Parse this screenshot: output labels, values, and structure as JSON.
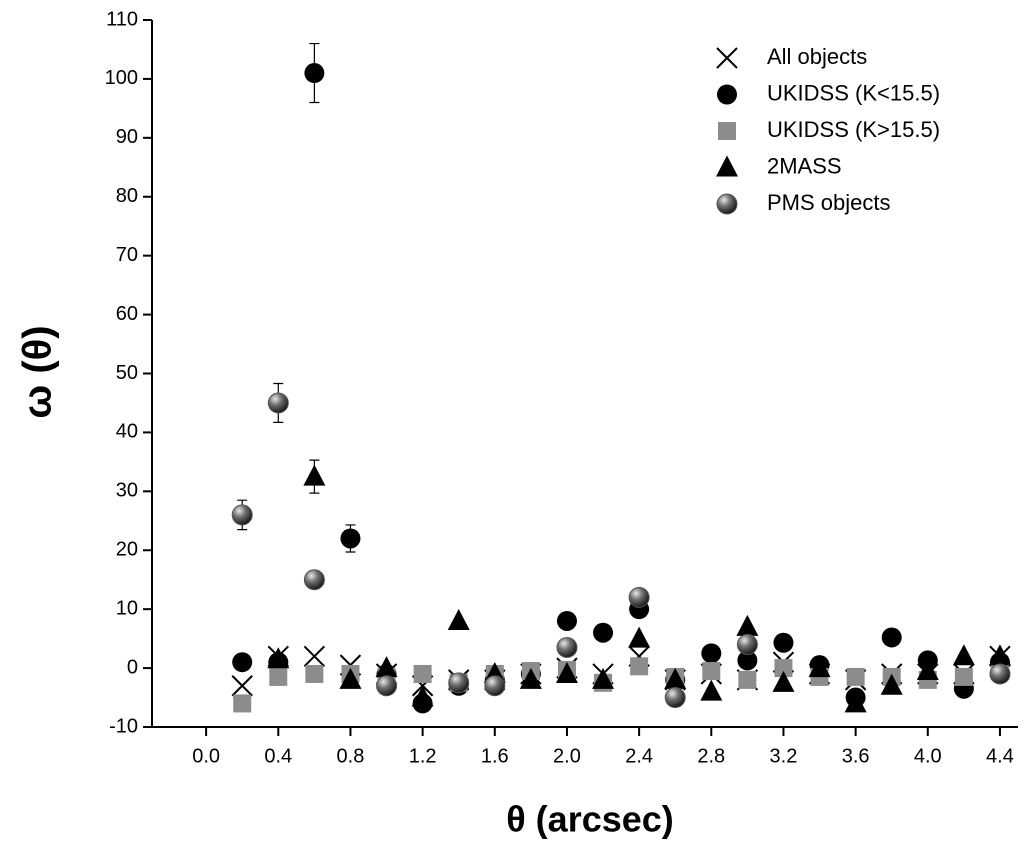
{
  "chart_data": {
    "type": "scatter",
    "x_label": "θ (arcsec)",
    "y_label": "ω (θ)",
    "x": [
      0.2,
      0.4,
      0.6,
      0.8,
      1.0,
      1.2,
      1.4,
      1.6,
      1.8,
      2.0,
      2.2,
      2.4,
      2.6,
      2.8,
      3.0,
      3.2,
      3.4,
      3.6,
      3.8,
      4.0,
      4.2,
      4.4
    ],
    "series": [
      {
        "name": "All objects",
        "marker": "x",
        "color": "#000000",
        "values": [
          -3,
          2,
          2,
          0.5,
          -1,
          -3,
          -2,
          -2,
          -1,
          0,
          -1,
          2,
          -2,
          -1,
          -2,
          1,
          -1,
          -2,
          -1,
          -1,
          -1,
          2
        ]
      },
      {
        "name": "UKIDSS (K<15.5)",
        "marker": "circle",
        "color": "#000000",
        "values": [
          1,
          1,
          101,
          22,
          -1,
          -6,
          -3,
          -2,
          -1,
          8,
          6,
          10,
          -2,
          2.5,
          1.3,
          4.3,
          0.5,
          -5,
          5.2,
          1.3,
          -3.5,
          1
        ],
        "errors": [
          null,
          null,
          5,
          2.3,
          null,
          null,
          null,
          null,
          null,
          null,
          null,
          null,
          null,
          null,
          null,
          null,
          null,
          null,
          null,
          null,
          null,
          null
        ]
      },
      {
        "name": "UKIDSS (K>15.5)",
        "marker": "square",
        "color": "#8c8c8c",
        "values": [
          -6,
          -1.5,
          -1,
          -1,
          -1.5,
          -1,
          -2.5,
          -1,
          -0.5,
          -0.3,
          -2.5,
          0.3,
          -1.5,
          -0.5,
          -2,
          0,
          -1.5,
          -1.5,
          -1.5,
          -2,
          -1.5,
          -0.5
        ]
      },
      {
        "name": "2MASS",
        "marker": "triangle",
        "color": "#000000",
        "values": [
          null,
          1.5,
          32.5,
          -2,
          0,
          -5,
          8,
          -1,
          -2,
          -1,
          -2,
          5,
          -2,
          -4,
          7,
          -2.5,
          0,
          -6,
          -3,
          -0.5,
          2,
          2
        ],
        "errors": [
          null,
          null,
          2.8,
          null,
          null,
          null,
          null,
          null,
          null,
          null,
          null,
          null,
          null,
          null,
          null,
          null,
          null,
          null,
          null,
          null,
          null,
          null
        ]
      },
      {
        "name": "PMS objects",
        "marker": "sphere",
        "color": "#555555",
        "values": [
          26,
          45,
          15,
          null,
          -3,
          null,
          -2.5,
          -3,
          null,
          3.5,
          null,
          12,
          -5,
          null,
          4,
          null,
          null,
          null,
          null,
          null,
          null,
          -1
        ],
        "errors": [
          2.5,
          3.3,
          1.5,
          null,
          null,
          null,
          null,
          null,
          null,
          null,
          null,
          1.5,
          null,
          null,
          null,
          null,
          null,
          null,
          null,
          null,
          null,
          null
        ]
      }
    ],
    "xlim": [
      -0.3,
      4.5
    ],
    "ylim": [
      -10,
      110
    ],
    "xticks": [
      {
        "value": 0,
        "label": "0.0"
      },
      0.4,
      0.8,
      1.2,
      1.6,
      {
        "value": 2,
        "label": "2.0"
      },
      2.4,
      2.8,
      3.2,
      3.6,
      {
        "value": 4,
        "label": "4.0"
      },
      4.4
    ],
    "yticks": [
      -10,
      0,
      10,
      20,
      30,
      40,
      50,
      60,
      70,
      80,
      90,
      100,
      110
    ],
    "legend": "upper right"
  }
}
